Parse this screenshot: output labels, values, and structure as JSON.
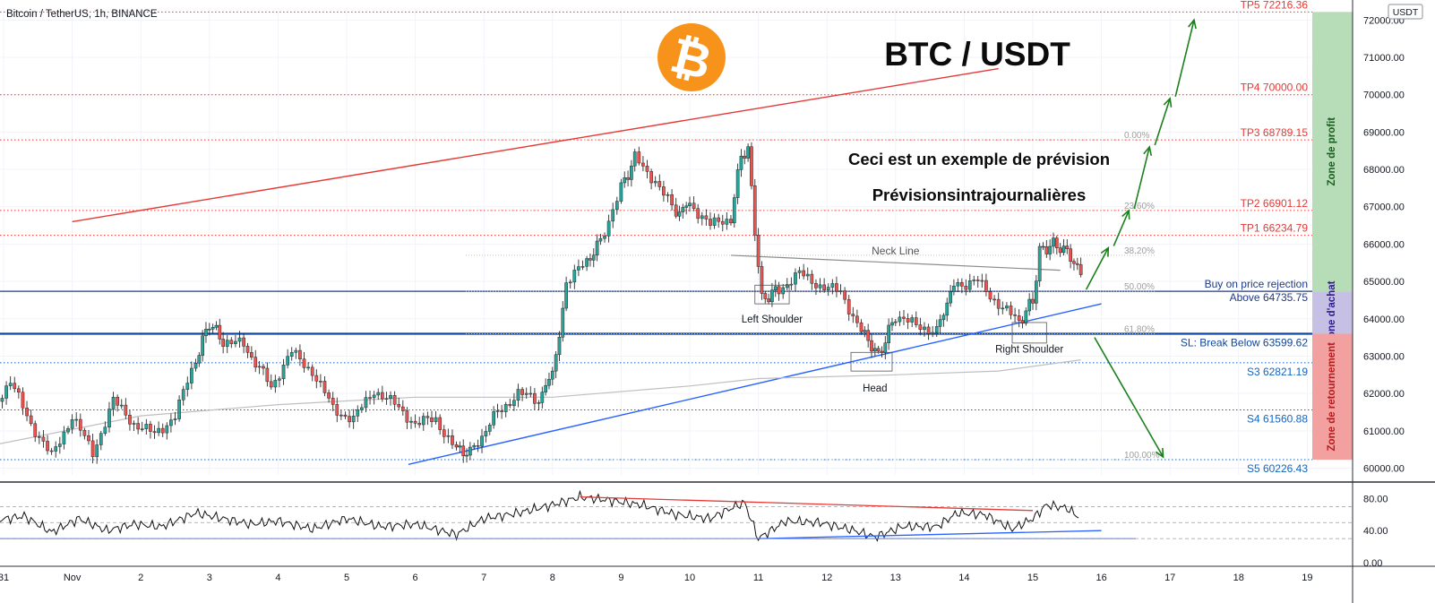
{
  "header": {
    "symbol": "Bitcoin / TetherUS, 1h, BINANCE",
    "currency": "USDT"
  },
  "chart_data": {
    "type": "candlestick",
    "title": "BTC / USDT",
    "subtitle": "Ceci est un exemple de prévision",
    "subtitle2": "Prévisionsintrajournalières",
    "symbol": "BTCUSDT",
    "exchange": "BINANCE",
    "interval": "1h",
    "ylim": [
      60000,
      72200
    ],
    "y_ticks": [
      "72000.00",
      "71000.00",
      "70000.00",
      "69000.00",
      "68000.00",
      "67000.00",
      "66000.00",
      "65000.00",
      "64000.00",
      "63000.00",
      "62000.00",
      "61000.00",
      "60000.00"
    ],
    "x_ticks": [
      "31",
      "Nov",
      "2",
      "3",
      "4",
      "5",
      "6",
      "7",
      "8",
      "9",
      "10",
      "11",
      "12",
      "13",
      "14",
      "15",
      "16",
      "17",
      "18",
      "19"
    ],
    "grid": true,
    "price_path": [
      {
        "x": -0.2,
        "y": 61600
      },
      {
        "x": 0.1,
        "y": 62300
      },
      {
        "x": 0.4,
        "y": 61200
      },
      {
        "x": 0.7,
        "y": 60300
      },
      {
        "x": 1.0,
        "y": 61400
      },
      {
        "x": 1.3,
        "y": 60400
      },
      {
        "x": 1.6,
        "y": 61800
      },
      {
        "x": 1.9,
        "y": 61200
      },
      {
        "x": 2.2,
        "y": 60900
      },
      {
        "x": 2.5,
        "y": 61400
      },
      {
        "x": 2.8,
        "y": 62900
      },
      {
        "x": 3.0,
        "y": 63900
      },
      {
        "x": 3.2,
        "y": 63400
      },
      {
        "x": 3.5,
        "y": 63300
      },
      {
        "x": 3.9,
        "y": 62200
      },
      {
        "x": 4.2,
        "y": 63100
      },
      {
        "x": 4.5,
        "y": 62600
      },
      {
        "x": 4.8,
        "y": 61600
      },
      {
        "x": 5.1,
        "y": 61300
      },
      {
        "x": 5.4,
        "y": 62100
      },
      {
        "x": 5.7,
        "y": 61700
      },
      {
        "x": 6.0,
        "y": 61200
      },
      {
        "x": 6.3,
        "y": 61300
      },
      {
        "x": 6.6,
        "y": 60500
      },
      {
        "x": 6.8,
        "y": 60400
      },
      {
        "x": 7.2,
        "y": 61500
      },
      {
        "x": 7.5,
        "y": 62000
      },
      {
        "x": 7.8,
        "y": 61800
      },
      {
        "x": 8.0,
        "y": 62600
      },
      {
        "x": 8.1,
        "y": 63500
      },
      {
        "x": 8.2,
        "y": 65000
      },
      {
        "x": 8.5,
        "y": 65500
      },
      {
        "x": 8.7,
        "y": 66100
      },
      {
        "x": 9.0,
        "y": 67500
      },
      {
        "x": 9.2,
        "y": 68300
      },
      {
        "x": 9.5,
        "y": 67700
      },
      {
        "x": 9.8,
        "y": 66800
      },
      {
        "x": 10.0,
        "y": 67100
      },
      {
        "x": 10.3,
        "y": 66500
      },
      {
        "x": 10.6,
        "y": 66700
      },
      {
        "x": 10.75,
        "y": 68400
      },
      {
        "x": 10.85,
        "y": 68500
      },
      {
        "x": 10.95,
        "y": 66400
      },
      {
        "x": 11.05,
        "y": 64500
      },
      {
        "x": 11.3,
        "y": 64800
      },
      {
        "x": 11.6,
        "y": 65200
      },
      {
        "x": 11.9,
        "y": 64900
      },
      {
        "x": 12.2,
        "y": 64700
      },
      {
        "x": 12.5,
        "y": 63700
      },
      {
        "x": 12.75,
        "y": 63000
      },
      {
        "x": 13.0,
        "y": 64100
      },
      {
        "x": 13.3,
        "y": 63800
      },
      {
        "x": 13.6,
        "y": 63700
      },
      {
        "x": 13.85,
        "y": 64900
      },
      {
        "x": 14.2,
        "y": 65000
      },
      {
        "x": 14.5,
        "y": 64400
      },
      {
        "x": 14.8,
        "y": 63900
      },
      {
        "x": 15.0,
        "y": 64500
      },
      {
        "x": 15.1,
        "y": 65800
      },
      {
        "x": 15.3,
        "y": 66000
      },
      {
        "x": 15.5,
        "y": 65800
      },
      {
        "x": 15.7,
        "y": 65200
      }
    ],
    "moving_average": [
      {
        "x": -0.2,
        "y": 60600
      },
      {
        "x": 2.0,
        "y": 61400
      },
      {
        "x": 4.0,
        "y": 61700
      },
      {
        "x": 6.0,
        "y": 61900
      },
      {
        "x": 8.0,
        "y": 61900
      },
      {
        "x": 10.0,
        "y": 62200
      },
      {
        "x": 11.0,
        "y": 62400
      },
      {
        "x": 13.0,
        "y": 62500
      },
      {
        "x": 14.5,
        "y": 62600
      },
      {
        "x": 15.7,
        "y": 62900
      }
    ],
    "resistance_line": [
      {
        "x": 1.0,
        "y": 66600
      },
      {
        "x": 14.5,
        "y": 70700
      }
    ],
    "support_line": [
      {
        "x": 5.9,
        "y": 60100
      },
      {
        "x": 16.0,
        "y": 64400
      }
    ],
    "neck_line": [
      {
        "x": 10.6,
        "y": 65700
      },
      {
        "x": 15.4,
        "y": 65300
      }
    ],
    "neck_line_label": "Neck Line",
    "pattern_labels": [
      {
        "text": "Left Shoulder",
        "x": 11.2,
        "y": 63900
      },
      {
        "text": "Head",
        "x": 12.7,
        "y": 62050
      },
      {
        "text": "Right Shoulder",
        "x": 14.95,
        "y": 63100
      }
    ],
    "levels": [
      {
        "label": "TP5 72216.36",
        "value": 72216.36,
        "color": "#e53935",
        "style": "dotted"
      },
      {
        "label": "TP4 70000.00",
        "value": 70000.0,
        "color": "#e53935",
        "style": "dotted"
      },
      {
        "label": "TP3 68789.15",
        "value": 68789.15,
        "color": "#e53935",
        "style": "dotted"
      },
      {
        "label": "TP2 66901.12",
        "value": 66901.12,
        "color": "#e53935",
        "style": "dotted"
      },
      {
        "label": "TP1 66234.79",
        "value": 66234.79,
        "color": "#e53935",
        "style": "dotted"
      },
      {
        "label": "Buy on price rejection",
        "value": 64735.75,
        "color": "#1e3a8a",
        "style": "solid"
      },
      {
        "label": "Above 64735.75",
        "value": 64735.75,
        "color": "#1e3a8a",
        "style": "none"
      },
      {
        "label": "SL: Break Below 63599.62",
        "value": 63599.62,
        "color": "#0d47a1",
        "style": "solid-thick"
      },
      {
        "label": "S3 62821.19",
        "value": 62821.19,
        "color": "#1565c0",
        "style": "dotted"
      },
      {
        "label": "S4 61560.88",
        "value": 61560.88,
        "color": "#1565c0",
        "style": "dotted"
      },
      {
        "label": "S5 60226.43",
        "value": 60226.43,
        "color": "#1565c0",
        "style": "dotted"
      }
    ],
    "fib_levels": [
      {
        "label": "0.00%",
        "value": 68789.15
      },
      {
        "label": "23.60%",
        "value": 66901.12
      },
      {
        "label": "38.20%",
        "value": 65700
      },
      {
        "label": "50.00%",
        "value": 64735.75
      },
      {
        "label": "61.80%",
        "value": 63600
      },
      {
        "label": "100.00%",
        "value": 60226.43
      }
    ],
    "zones": [
      {
        "label": "Zone de profit",
        "from": 64735.75,
        "to": 72216.36,
        "color": "#b7dcb8",
        "text_color": "#1b5e20"
      },
      {
        "label": "Zone d'achat",
        "from": 63599.62,
        "to": 64735.75,
        "color": "#c6c0e4",
        "text_color": "#311b92"
      },
      {
        "label": "Zone de retournement",
        "from": 60226.43,
        "to": 63599.62,
        "color": "#f2a0a0",
        "text_color": "#b71c1c"
      }
    ],
    "projection": [
      {
        "x": 15.7,
        "y": 64735.75
      },
      {
        "x": 16.1,
        "y": 65900
      },
      {
        "x": 16.4,
        "y": 66900
      },
      {
        "x": 16.7,
        "y": 68600
      },
      {
        "x": 17.0,
        "y": 69900
      },
      {
        "x": 17.35,
        "y": 72000
      }
    ],
    "projection_down": [
      {
        "x": 15.9,
        "y": 63500
      },
      {
        "x": 16.9,
        "y": 60300
      }
    ],
    "rsi": {
      "ylim": [
        0,
        100
      ],
      "y_ticks": [
        "80.00",
        "40.00",
        "0.00"
      ],
      "levels": [
        70,
        50,
        30
      ],
      "path": [
        {
          "x": -0.2,
          "y": 52
        },
        {
          "x": 0.3,
          "y": 58
        },
        {
          "x": 0.7,
          "y": 38
        },
        {
          "x": 1.1,
          "y": 55
        },
        {
          "x": 1.5,
          "y": 40
        },
        {
          "x": 1.9,
          "y": 48
        },
        {
          "x": 2.3,
          "y": 45
        },
        {
          "x": 2.8,
          "y": 62
        },
        {
          "x": 3.2,
          "y": 55
        },
        {
          "x": 3.6,
          "y": 48
        },
        {
          "x": 4.0,
          "y": 52
        },
        {
          "x": 4.5,
          "y": 42
        },
        {
          "x": 5.0,
          "y": 55
        },
        {
          "x": 5.5,
          "y": 45
        },
        {
          "x": 6.0,
          "y": 48
        },
        {
          "x": 6.6,
          "y": 35
        },
        {
          "x": 7.0,
          "y": 55
        },
        {
          "x": 7.5,
          "y": 62
        },
        {
          "x": 8.0,
          "y": 72
        },
        {
          "x": 8.4,
          "y": 82
        },
        {
          "x": 8.8,
          "y": 78
        },
        {
          "x": 9.3,
          "y": 72
        },
        {
          "x": 9.8,
          "y": 60
        },
        {
          "x": 10.3,
          "y": 55
        },
        {
          "x": 10.6,
          "y": 68
        },
        {
          "x": 10.8,
          "y": 75
        },
        {
          "x": 11.0,
          "y": 30
        },
        {
          "x": 11.4,
          "y": 52
        },
        {
          "x": 11.9,
          "y": 50
        },
        {
          "x": 12.4,
          "y": 40
        },
        {
          "x": 12.7,
          "y": 32
        },
        {
          "x": 13.1,
          "y": 45
        },
        {
          "x": 13.6,
          "y": 45
        },
        {
          "x": 13.9,
          "y": 62
        },
        {
          "x": 14.3,
          "y": 60
        },
        {
          "x": 14.7,
          "y": 42
        },
        {
          "x": 15.0,
          "y": 55
        },
        {
          "x": 15.2,
          "y": 72
        },
        {
          "x": 15.5,
          "y": 68
        },
        {
          "x": 15.7,
          "y": 55
        }
      ],
      "trend_top": [
        {
          "x": 8.4,
          "y": 82
        },
        {
          "x": 15.0,
          "y": 65
        }
      ],
      "trend_bottom": [
        {
          "x": 11.0,
          "y": 30
        },
        {
          "x": 16.0,
          "y": 40
        }
      ],
      "support_bottom": [
        {
          "x": -0.2,
          "y": 30
        },
        {
          "x": 16.5,
          "y": 30
        }
      ]
    },
    "colors": {
      "up": "#26a69a",
      "down": "#ef5350",
      "candle": "#2a2a2a",
      "logo": "#f7931a"
    }
  }
}
